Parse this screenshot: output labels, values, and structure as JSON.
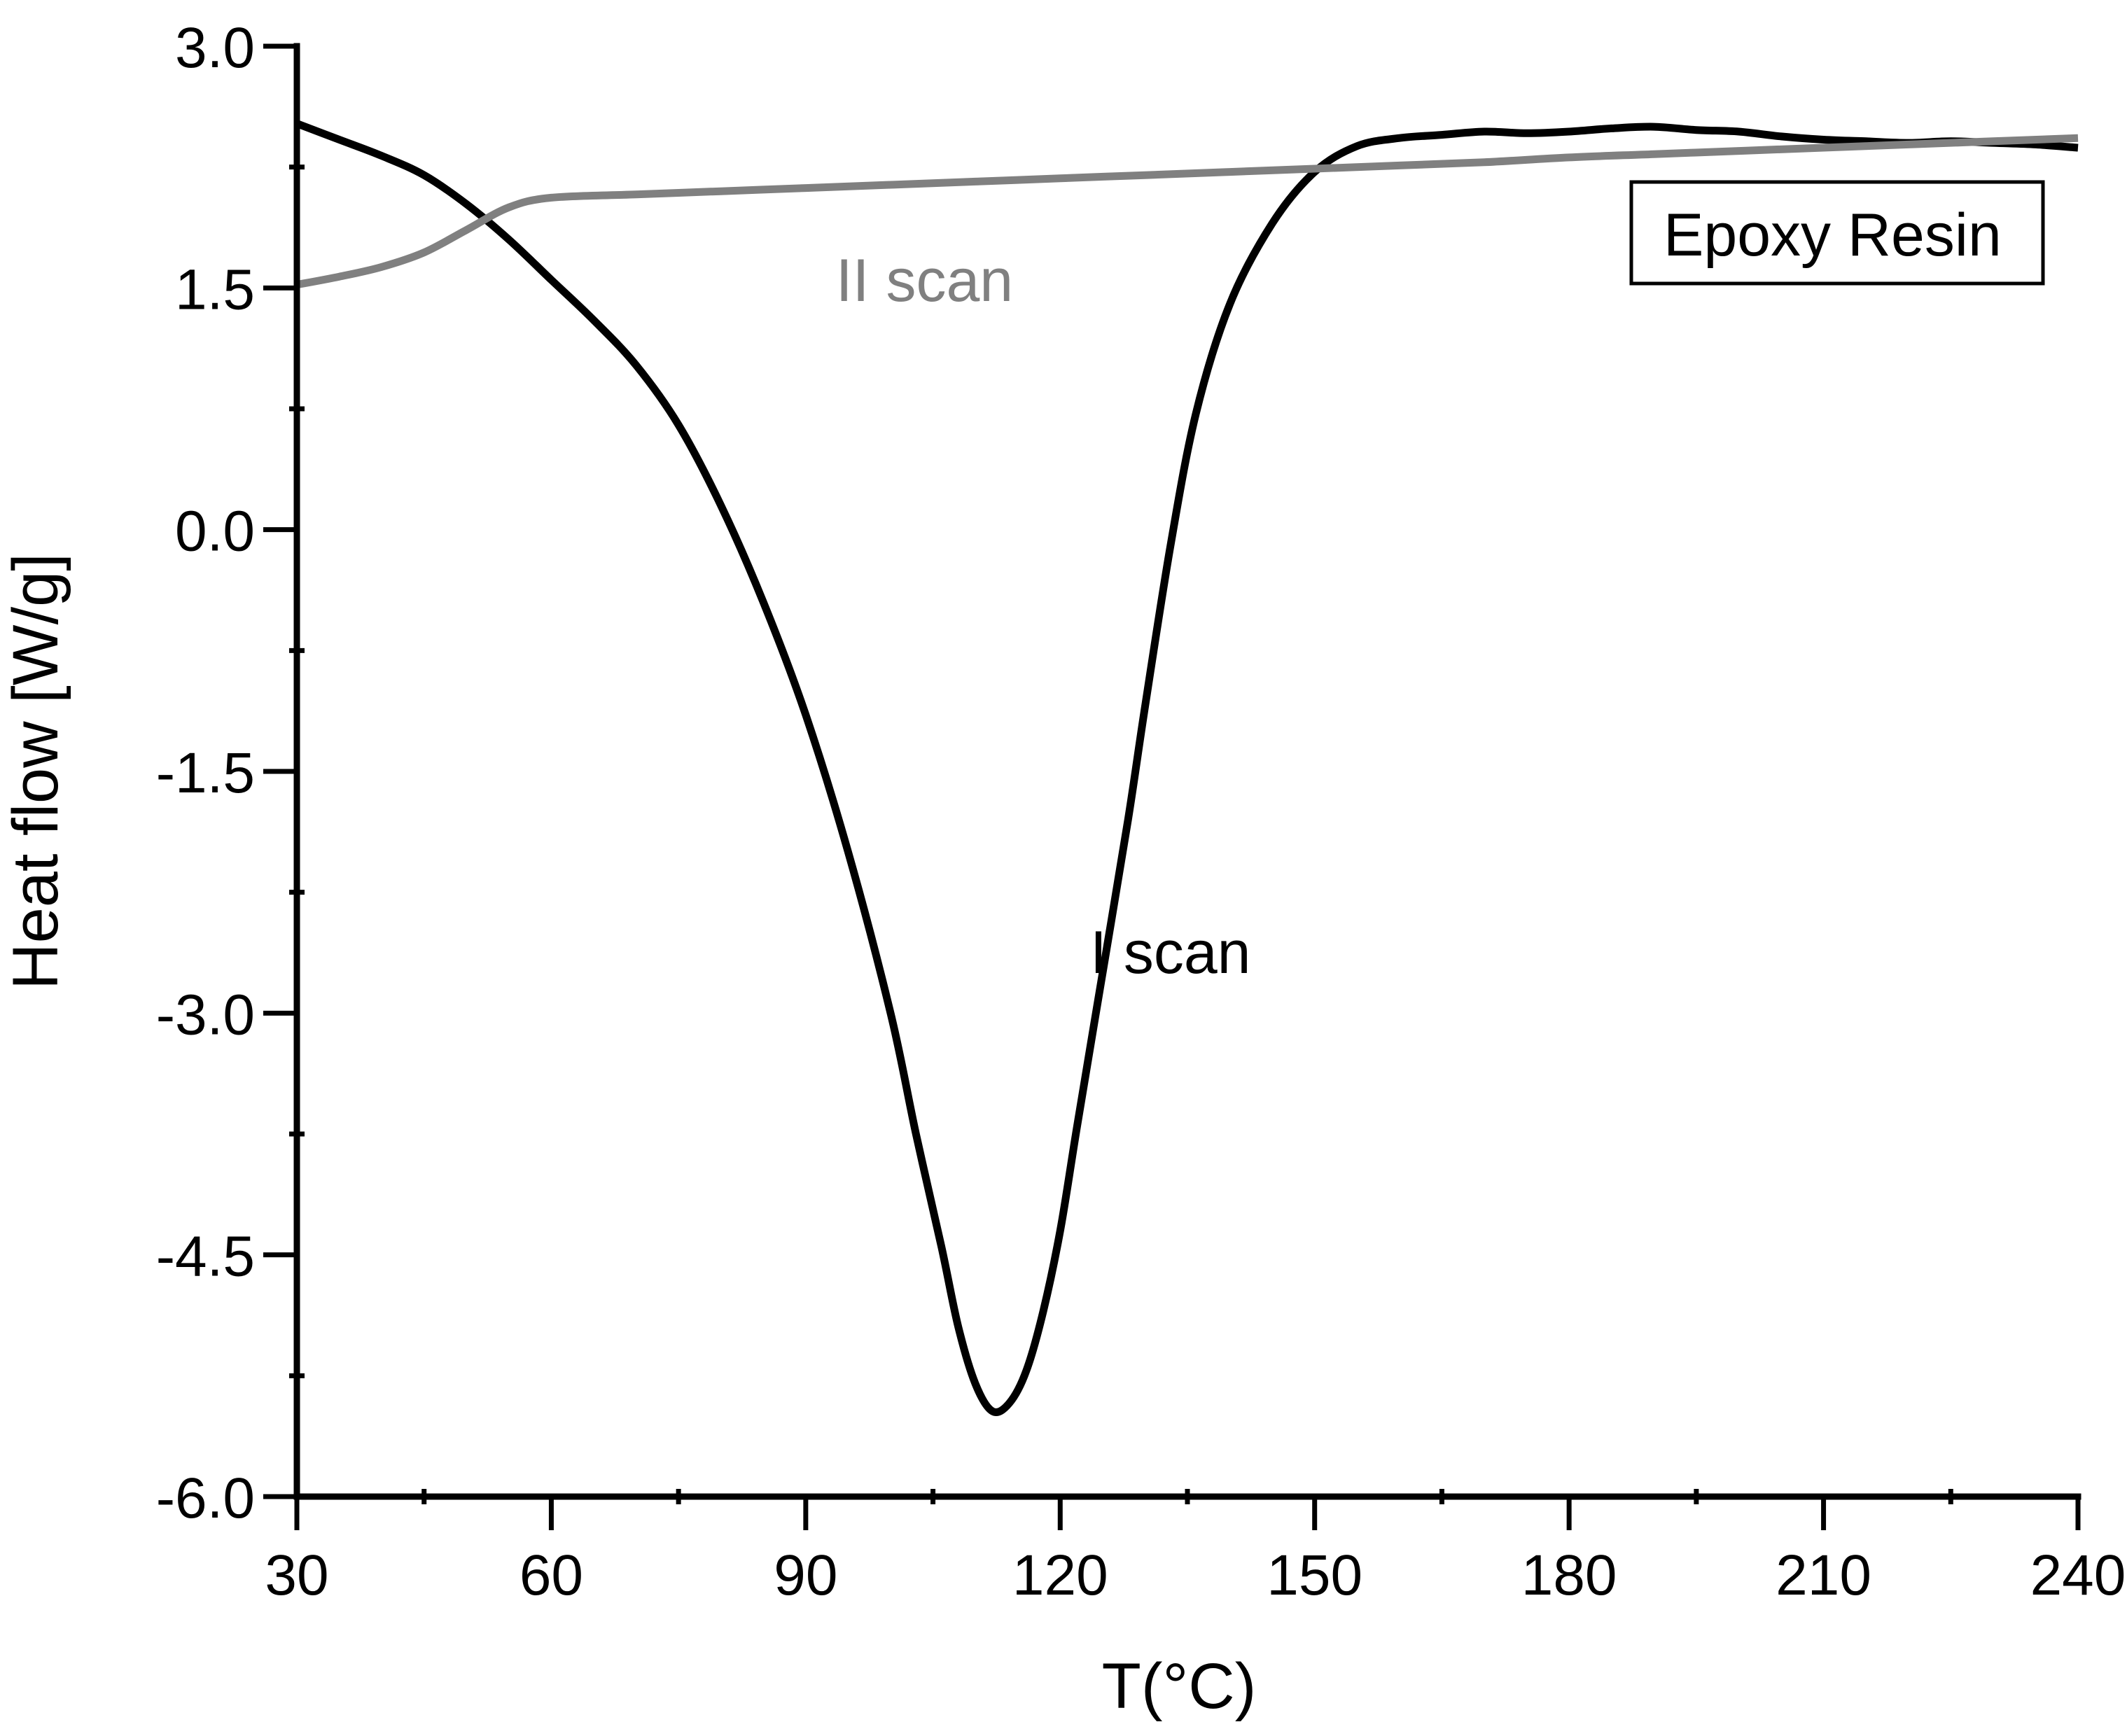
{
  "chart_data": {
    "type": "line",
    "title": "",
    "xlabel": "T(°C)",
    "ylabel": "Heat flow [W/g]",
    "xlim": [
      30,
      240
    ],
    "ylim": [
      -6.0,
      3.0
    ],
    "x_major_ticks": [
      30,
      60,
      90,
      120,
      150,
      180,
      210,
      240
    ],
    "x_tick_labels": [
      "30",
      "60",
      "90",
      "120",
      "150",
      "180",
      "210",
      "240"
    ],
    "x_minor_ticks": [
      45,
      75,
      105,
      135,
      165,
      195,
      225
    ],
    "y_major_ticks": [
      3.0,
      1.5,
      0.0,
      -1.5,
      -3.0,
      -4.5,
      -6.0
    ],
    "y_tick_labels": [
      "3.0",
      "1.5",
      "0.0",
      "-1.5",
      "-3.0",
      "-4.5",
      "-6.0"
    ],
    "y_minor_ticks": [
      2.25,
      0.75,
      -0.75,
      -2.25,
      -3.75,
      -5.25
    ],
    "grid": false,
    "legend_box": "Epoxy Resin",
    "legend_position": "top-right",
    "series": [
      {
        "name": "I scan",
        "color": "#000000",
        "points": [
          [
            30,
            2.52
          ],
          [
            35,
            2.42
          ],
          [
            40,
            2.32
          ],
          [
            45,
            2.2
          ],
          [
            50,
            2.02
          ],
          [
            55,
            1.8
          ],
          [
            60,
            1.55
          ],
          [
            65,
            1.3
          ],
          [
            70,
            1.02
          ],
          [
            75,
            0.65
          ],
          [
            80,
            0.15
          ],
          [
            85,
            -0.45
          ],
          [
            90,
            -1.15
          ],
          [
            95,
            -2.0
          ],
          [
            100,
            -3.0
          ],
          [
            103,
            -3.75
          ],
          [
            106,
            -4.45
          ],
          [
            108,
            -4.95
          ],
          [
            110,
            -5.3
          ],
          [
            112,
            -5.47
          ],
          [
            114,
            -5.42
          ],
          [
            116,
            -5.22
          ],
          [
            118,
            -4.85
          ],
          [
            120,
            -4.35
          ],
          [
            122,
            -3.7
          ],
          [
            125,
            -2.75
          ],
          [
            128,
            -1.8
          ],
          [
            130,
            -1.1
          ],
          [
            133,
            -0.1
          ],
          [
            136,
            0.72
          ],
          [
            140,
            1.4
          ],
          [
            145,
            1.9
          ],
          [
            150,
            2.22
          ],
          [
            155,
            2.38
          ],
          [
            160,
            2.43
          ],
          [
            165,
            2.45
          ],
          [
            170,
            2.47
          ],
          [
            175,
            2.46
          ],
          [
            180,
            2.47
          ],
          [
            185,
            2.49
          ],
          [
            190,
            2.5
          ],
          [
            195,
            2.48
          ],
          [
            200,
            2.47
          ],
          [
            205,
            2.44
          ],
          [
            210,
            2.42
          ],
          [
            215,
            2.41
          ],
          [
            220,
            2.4
          ],
          [
            225,
            2.41
          ],
          [
            230,
            2.4
          ],
          [
            235,
            2.39
          ],
          [
            240,
            2.37
          ]
        ]
      },
      {
        "name": "II scan",
        "color": "#808080",
        "points": [
          [
            30,
            1.52
          ],
          [
            35,
            1.57
          ],
          [
            40,
            1.63
          ],
          [
            45,
            1.72
          ],
          [
            50,
            1.86
          ],
          [
            55,
            2.0
          ],
          [
            60,
            2.06
          ],
          [
            70,
            2.08
          ],
          [
            80,
            2.1
          ],
          [
            90,
            2.12
          ],
          [
            100,
            2.14
          ],
          [
            110,
            2.16
          ],
          [
            120,
            2.18
          ],
          [
            130,
            2.2
          ],
          [
            140,
            2.22
          ],
          [
            150,
            2.24
          ],
          [
            160,
            2.26
          ],
          [
            170,
            2.28
          ],
          [
            180,
            2.31
          ],
          [
            190,
            2.33
          ],
          [
            200,
            2.35
          ],
          [
            210,
            2.37
          ],
          [
            220,
            2.39
          ],
          [
            230,
            2.41
          ],
          [
            240,
            2.43
          ]
        ]
      }
    ],
    "annotations": [
      {
        "text": "II scan",
        "x": 104,
        "y": 1.42,
        "color": "#808080"
      },
      {
        "text": "I scan",
        "x": 133,
        "y": -2.75,
        "color": "#000000"
      }
    ]
  }
}
